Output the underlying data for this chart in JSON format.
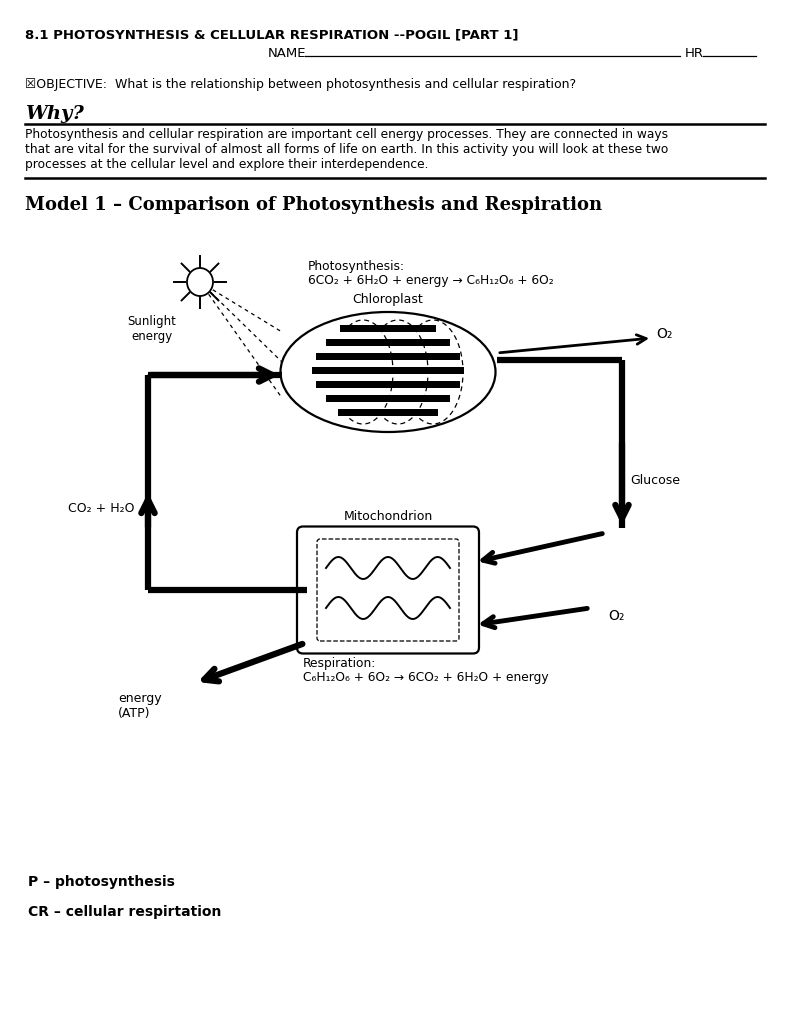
{
  "title": "8.1 PHOTOSYNTHESIS & CELLULAR RESPIRATION --POGIL [PART 1]",
  "name_label": "NAME",
  "hr_label": "HR",
  "objective": "☒OBJECTIVE:  What is the relationship between photosynthesis and cellular respiration?",
  "why_heading": "Why?",
  "why_text1": "Photosynthesis and cellular respiration are important cell energy processes. They are connected in ways",
  "why_text2": "that are vital for the survival of almost all forms of life on earth. In this activity you will look at these two",
  "why_text3": "processes at the cellular level and explore their interdependence.",
  "model_title": "Model 1 – Comparison of Photosynthesis and Respiration",
  "photo_label": "Photosynthesis:",
  "photo_eq": "6CO₂ + 6H₂O + energy → C₆H₁₂O₆ + 6O₂",
  "resp_label": "Respiration:",
  "resp_eq": "C₆H₁₂O₆ + 6O₂ → 6CO₂ + 6H₂O + energy",
  "sunlight_label": "Sunlight\nenergy",
  "chloroplast_label": "Chloroplast",
  "mitochondrion_label": "Mitochondrion",
  "co2_h2o_label": "CO₂ + H₂O",
  "glucose_label": "Glucose",
  "o2_top_label": "O₂",
  "o2_bottom_label": "O₂",
  "energy_label": "energy\n(ATP)",
  "p_label": "P – photosynthesis",
  "cr_label": "CR – cellular respirtation",
  "bg_color": "#ffffff",
  "text_color": "#000000"
}
